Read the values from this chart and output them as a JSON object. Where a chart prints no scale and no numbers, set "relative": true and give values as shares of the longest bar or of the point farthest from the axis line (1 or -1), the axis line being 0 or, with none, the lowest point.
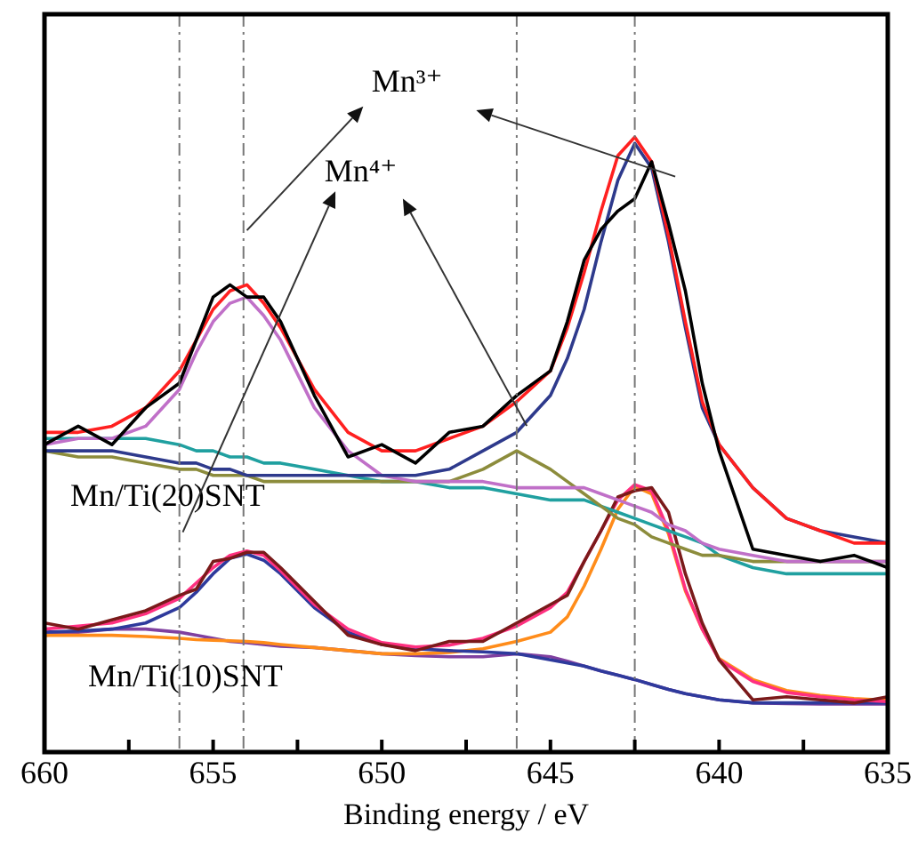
{
  "chart_data": {
    "type": "line",
    "relative": true,
    "xlabel": "Binding energy / eV",
    "legend": false,
    "grid": false,
    "marker": "none",
    "line_style": "solid",
    "xlim": [
      660,
      635
    ],
    "xticks": [
      660,
      {
        "value": 657.5,
        "label": null
      },
      655,
      {
        "value": 652.5,
        "label": null
      },
      650,
      {
        "value": 647.5,
        "label": null
      },
      645,
      {
        "value": 642.5,
        "label": null
      },
      640,
      {
        "value": 637.5,
        "label": null
      },
      635
    ],
    "x": [
      660,
      659,
      658,
      657,
      656,
      655.5,
      655,
      654.5,
      654,
      653.5,
      653,
      652,
      651,
      650,
      649,
      648,
      647,
      646,
      645,
      644.5,
      644,
      643.5,
      643,
      642.5,
      642,
      641.5,
      641,
      640.5,
      640,
      639,
      638,
      637,
      636,
      635
    ],
    "series": [
      {
        "color": "#000000",
        "values": [
          0.5,
          0.53,
          0.5,
          0.56,
          0.6,
          0.67,
          0.74,
          0.76,
          0.74,
          0.74,
          0.7,
          0.58,
          0.48,
          0.5,
          0.47,
          0.52,
          0.53,
          0.58,
          0.62,
          0.7,
          0.8,
          0.85,
          0.88,
          0.9,
          0.96,
          0.86,
          0.75,
          0.6,
          0.49,
          0.33,
          0.32,
          0.31,
          0.32,
          0.3
        ]
      },
      {
        "color": "#ff2020",
        "values": [
          0.52,
          0.52,
          0.53,
          0.56,
          0.62,
          0.67,
          0.72,
          0.75,
          0.76,
          0.73,
          0.69,
          0.59,
          0.52,
          0.49,
          0.49,
          0.51,
          0.53,
          0.57,
          0.62,
          0.69,
          0.78,
          0.88,
          0.97,
          1.0,
          0.96,
          0.84,
          0.7,
          0.57,
          0.5,
          0.43,
          0.38,
          0.36,
          0.34,
          0.34
        ]
      },
      {
        "color": "#2e3a8c",
        "values": [
          0.49,
          0.49,
          0.49,
          0.48,
          0.47,
          0.47,
          0.46,
          0.46,
          0.45,
          0.45,
          0.45,
          0.45,
          0.45,
          0.45,
          0.45,
          0.46,
          0.49,
          0.52,
          0.58,
          0.64,
          0.72,
          0.83,
          0.93,
          0.99,
          0.95,
          0.83,
          0.69,
          0.56,
          0.5,
          0.43,
          0.38,
          0.36,
          0.35,
          0.34
        ]
      },
      {
        "color": "#c070c8",
        "values": [
          0.5,
          0.51,
          0.51,
          0.53,
          0.59,
          0.65,
          0.7,
          0.73,
          0.74,
          0.71,
          0.67,
          0.56,
          0.49,
          0.45,
          0.44,
          0.44,
          0.44,
          0.43,
          0.43,
          0.43,
          0.43,
          0.42,
          0.41,
          0.4,
          0.39,
          0.37,
          0.36,
          0.34,
          0.33,
          0.32,
          0.31,
          0.31,
          0.31,
          0.31
        ]
      },
      {
        "color": "#8c8c3c",
        "values": [
          0.49,
          0.48,
          0.48,
          0.47,
          0.46,
          0.46,
          0.45,
          0.45,
          0.45,
          0.44,
          0.44,
          0.44,
          0.44,
          0.44,
          0.44,
          0.44,
          0.46,
          0.49,
          0.46,
          0.44,
          0.42,
          0.4,
          0.38,
          0.37,
          0.35,
          0.34,
          0.33,
          0.32,
          0.32,
          0.31,
          0.31,
          0.31,
          0.31,
          0.31
        ]
      },
      {
        "color": "#20a0a0",
        "values": [
          0.51,
          0.51,
          0.51,
          0.51,
          0.5,
          0.49,
          0.49,
          0.48,
          0.48,
          0.47,
          0.47,
          0.46,
          0.45,
          0.44,
          0.44,
          0.43,
          0.43,
          0.42,
          0.41,
          0.41,
          0.41,
          0.4,
          0.39,
          0.38,
          0.37,
          0.36,
          0.35,
          0.34,
          0.32,
          0.3,
          0.29,
          0.29,
          0.29,
          0.29
        ]
      },
      {
        "color": "#7a1a1a",
        "values": [
          0.21,
          0.2,
          0.215,
          0.23,
          0.255,
          0.265,
          0.31,
          0.315,
          0.325,
          0.325,
          0.3,
          0.245,
          0.19,
          0.175,
          0.165,
          0.18,
          0.18,
          0.21,
          0.24,
          0.255,
          0.31,
          0.36,
          0.415,
          0.425,
          0.43,
          0.39,
          0.29,
          0.21,
          0.15,
          0.085,
          0.09,
          0.085,
          0.08,
          0.09
        ]
      },
      {
        "color": "#ff3080",
        "values": [
          0.2,
          0.205,
          0.21,
          0.225,
          0.25,
          0.275,
          0.3,
          0.32,
          0.327,
          0.32,
          0.295,
          0.24,
          0.2,
          0.178,
          0.171,
          0.174,
          0.185,
          0.205,
          0.235,
          0.26,
          0.31,
          0.36,
          0.41,
          0.435,
          0.425,
          0.36,
          0.265,
          0.2,
          0.15,
          0.115,
          0.097,
          0.09,
          0.085,
          0.082
        ]
      },
      {
        "color": "#2e3a9c",
        "values": [
          0.195,
          0.197,
          0.2,
          0.21,
          0.235,
          0.26,
          0.29,
          0.315,
          0.322,
          0.312,
          0.29,
          0.235,
          0.195,
          0.175,
          0.168,
          0.165,
          0.163,
          0.16,
          0.15,
          0.145,
          0.14,
          0.132,
          0.125,
          0.118,
          0.11,
          0.102,
          0.095,
          0.09,
          0.085,
          0.08,
          0.08,
          0.08,
          0.08,
          0.08
        ]
      },
      {
        "color": "#ff8c1a",
        "values": [
          0.19,
          0.19,
          0.19,
          0.188,
          0.185,
          0.183,
          0.182,
          0.181,
          0.18,
          0.178,
          0.175,
          0.17,
          0.165,
          0.16,
          0.16,
          0.162,
          0.168,
          0.18,
          0.195,
          0.22,
          0.27,
          0.33,
          0.395,
          0.432,
          0.42,
          0.355,
          0.262,
          0.2,
          0.152,
          0.118,
          0.1,
          0.092,
          0.087,
          0.084
        ]
      },
      {
        "color": "#8040a0",
        "values": [
          0.19,
          0.195,
          0.2,
          0.2,
          0.195,
          0.19,
          0.185,
          0.18,
          0.178,
          0.175,
          0.172,
          0.17,
          0.165,
          0.16,
          0.157,
          0.155,
          0.155,
          0.16,
          0.155,
          0.148,
          0.14,
          0.132,
          0.125,
          0.118,
          0.11,
          0.102,
          0.095,
          0.09,
          0.085,
          0.08,
          0.079,
          0.078,
          0.078,
          0.078
        ]
      }
    ],
    "ref_lines": [
      {
        "axis": "x",
        "value": 656,
        "color": "#777777",
        "line_style": "dashed"
      },
      {
        "axis": "x",
        "value": 654.1,
        "color": "#777777",
        "line_style": "dashed"
      },
      {
        "axis": "x",
        "value": 646,
        "color": "#777777",
        "line_style": "dashed"
      },
      {
        "axis": "x",
        "value": 642.5,
        "color": "#777777",
        "line_style": "dashed"
      }
    ],
    "annotations": [
      "Mn³⁺",
      "Mn⁴⁺",
      "Mn/Ti(20)SNT",
      "Mn/Ti(10)SNT"
    ]
  }
}
